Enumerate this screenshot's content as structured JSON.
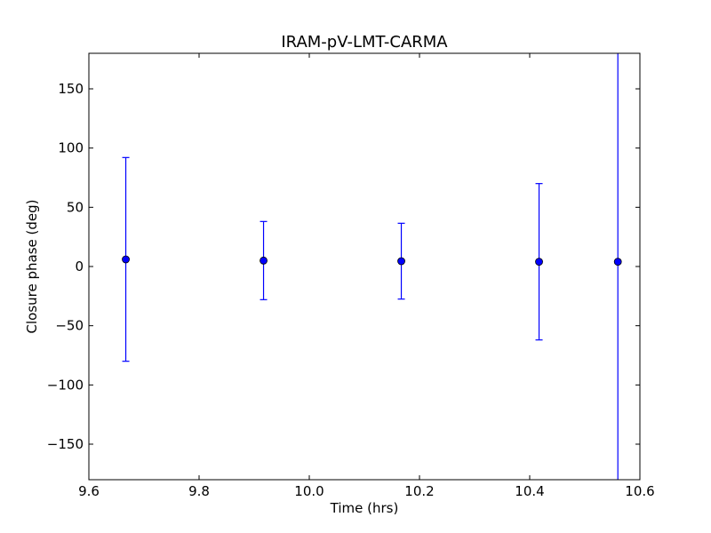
{
  "chart_data": {
    "type": "scatter",
    "title": "IRAM-pV-LMT-CARMA",
    "xlabel": "Time (hrs)",
    "ylabel": "Closure phase (deg)",
    "xlim": [
      9.6,
      10.6
    ],
    "ylim": [
      -180,
      180
    ],
    "xticks": [
      9.6,
      9.8,
      10.0,
      10.2,
      10.4,
      10.6
    ],
    "xtick_labels": [
      "9.6",
      "9.8",
      "10.0",
      "10.2",
      "10.4",
      "10.6"
    ],
    "yticks": [
      150,
      100,
      50,
      0,
      -50,
      -100,
      -150
    ],
    "ytick_labels": [
      "150",
      "100",
      "50",
      "0",
      "−50",
      "−100",
      "−150"
    ],
    "grid": false,
    "marker_color": "#0000ff",
    "errorbar_color": "#0000ff",
    "series": [
      {
        "x": [
          9.667,
          9.917,
          10.167,
          10.417,
          10.56
        ],
        "y": [
          6,
          5,
          4.5,
          4,
          4
        ],
        "yerr": [
          86,
          33,
          32,
          66,
          200
        ]
      }
    ]
  }
}
